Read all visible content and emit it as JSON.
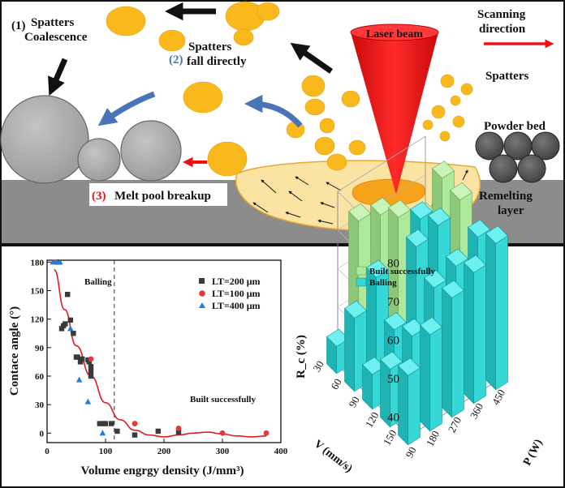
{
  "top_panel": {
    "label_coalescence_num": "(1)",
    "label_coalescence_1": "Spatters",
    "label_coalescence_2": "Coalescence",
    "label_fall_num": "(2)",
    "label_fall_1": "Spatters",
    "label_fall_2": "fall directly",
    "label_breakup_num": "(3)",
    "label_breakup": "Melt pool breakup",
    "laser_label": "Laser beam",
    "scan_1": "Scanning",
    "scan_2": "direction",
    "spatters_label": "Spatters",
    "powder_label": "Powder bed",
    "remelt_1": "Remelting",
    "remelt_2": "layer",
    "colors": {
      "spatter": "#f9b81b",
      "melt": "#fbe3a3",
      "laser": "#ee1111",
      "core": "#f6a21a",
      "substrate": "#8c8c8c",
      "sphere": "#a8a8a8",
      "powder": "#555555",
      "blue_arrow": "#4a74b8"
    }
  },
  "chart_data": [
    {
      "type": "scatter",
      "ylabel": "Contace angle (°)",
      "xlabel": "Volume engrgy density (J/mm³)",
      "xlim": [
        0,
        400
      ],
      "ylim": [
        -10,
        182
      ],
      "xticks": [
        "0",
        "100",
        "200",
        "300",
        "400"
      ],
      "yticks": [
        "0",
        "30",
        "60",
        "90",
        "120",
        "150",
        "180"
      ],
      "annotation_balling": "Balling",
      "annotation_built": "Built successfully",
      "threshold_x": 115,
      "series": [
        {
          "name": "LT=200 μm",
          "marker": "square",
          "color": "#3a3a3a",
          "points": [
            [
              20,
              180
            ],
            [
              25,
              110
            ],
            [
              28,
              113
            ],
            [
              31,
              115
            ],
            [
              35,
              146
            ],
            [
              40,
              119
            ],
            [
              45,
              105
            ],
            [
              50,
              80
            ],
            [
              52,
              80
            ],
            [
              57,
              75
            ],
            [
              60,
              78
            ],
            [
              70,
              77
            ],
            [
              72,
              75
            ],
            [
              75,
              70
            ],
            [
              75,
              65
            ],
            [
              75,
              60
            ],
            [
              90,
              10
            ],
            [
              95,
              10
            ],
            [
              100,
              10
            ],
            [
              110,
              10
            ],
            [
              120,
              2
            ],
            [
              150,
              -2
            ],
            [
              190,
              2
            ],
            [
              225,
              1
            ]
          ]
        },
        {
          "name": "LT=100 μm",
          "marker": "circle",
          "color": "#e23a3a",
          "points": [
            [
              15,
              180
            ],
            [
              75,
              78
            ],
            [
              150,
              10
            ],
            [
              225,
              5
            ],
            [
              300,
              0
            ],
            [
              375,
              0
            ]
          ]
        },
        {
          "name": "LT=400 μm",
          "marker": "triangle",
          "color": "#1e7fd8",
          "points": [
            [
              10,
              180
            ],
            [
              17,
              180
            ],
            [
              22,
              180
            ],
            [
              40,
              110
            ],
            [
              55,
              56
            ],
            [
              70,
              33
            ],
            [
              95,
              0
            ]
          ]
        }
      ],
      "fit_curve": [
        [
          12,
          172
        ],
        [
          30,
          130
        ],
        [
          50,
          92
        ],
        [
          75,
          60
        ],
        [
          100,
          32
        ],
        [
          125,
          14
        ],
        [
          150,
          3
        ],
        [
          175,
          -2
        ],
        [
          200,
          -4
        ],
        [
          225,
          -2
        ],
        [
          250,
          0
        ],
        [
          275,
          1
        ],
        [
          300,
          -1
        ],
        [
          325,
          -3
        ],
        [
          350,
          -4
        ],
        [
          375,
          -3
        ]
      ]
    },
    {
      "type": "bar3d",
      "zlabel": "R_c (%)",
      "xlabel": "V (mm/s)",
      "ylabel": "P (W)",
      "legend": [
        "Built successfully",
        "Balling"
      ],
      "colors": {
        "built": "#aee89a",
        "balling": "#35d7d7"
      },
      "z_ticks": [
        "40",
        "50",
        "60",
        "70",
        "80"
      ],
      "v_ticks": [
        "30",
        "60",
        "90",
        "120",
        "150"
      ],
      "p_ticks": [
        "90",
        "180",
        "270",
        "360",
        "450"
      ],
      "bars": [
        {
          "v": 30,
          "p": 450,
          "value": 60.5,
          "group": "built"
        },
        {
          "v": 30,
          "p": 360,
          "value": 62,
          "group": "built"
        },
        {
          "v": 30,
          "p": 270,
          "value": 69,
          "group": "built"
        },
        {
          "v": 30,
          "p": 180,
          "value": 71,
          "group": "built"
        },
        {
          "v": 30,
          "p": 90,
          "value": 42,
          "group": "balling"
        },
        {
          "v": 60,
          "p": 450,
          "value": 76,
          "group": "built"
        },
        {
          "v": 60,
          "p": 360,
          "value": 69,
          "group": "balling"
        },
        {
          "v": 60,
          "p": 270,
          "value": 73,
          "group": "built"
        },
        {
          "v": 60,
          "p": 180,
          "value": 61,
          "group": "balling"
        },
        {
          "v": 60,
          "p": 90,
          "value": 54,
          "group": "balling"
        },
        {
          "v": 90,
          "p": 450,
          "value": 75,
          "group": "built"
        },
        {
          "v": 90,
          "p": 360,
          "value": 72,
          "group": "balling"
        },
        {
          "v": 90,
          "p": 270,
          "value": 70,
          "group": "balling"
        },
        {
          "v": 90,
          "p": 180,
          "value": 52,
          "group": "balling"
        },
        {
          "v": 90,
          "p": 90,
          "value": 44,
          "group": "balling"
        },
        {
          "v": 120,
          "p": 450,
          "value": 70,
          "group": "balling"
        },
        {
          "v": 120,
          "p": 360,
          "value": 66,
          "group": "balling"
        },
        {
          "v": 120,
          "p": 270,
          "value": 64,
          "group": "balling"
        },
        {
          "v": 120,
          "p": 180,
          "value": 55,
          "group": "balling"
        },
        {
          "v": 120,
          "p": 90,
          "value": 50,
          "group": "balling"
        },
        {
          "v": 150,
          "p": 450,
          "value": 73,
          "group": "balling"
        },
        {
          "v": 150,
          "p": 360,
          "value": 69,
          "group": "balling"
        },
        {
          "v": 150,
          "p": 270,
          "value": 66,
          "group": "balling"
        },
        {
          "v": 150,
          "p": 180,
          "value": 60,
          "group": "balling"
        },
        {
          "v": 150,
          "p": 90,
          "value": 53,
          "group": "balling"
        }
      ]
    }
  ]
}
